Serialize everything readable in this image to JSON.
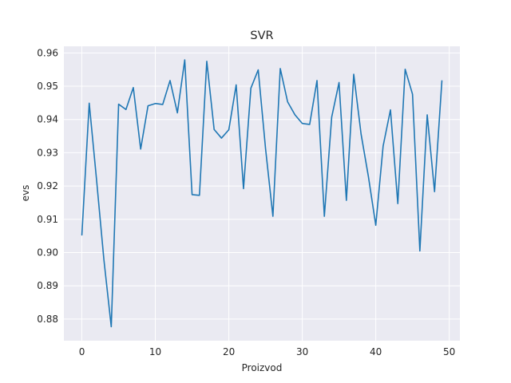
{
  "chart_data": {
    "type": "line",
    "title": "SVR",
    "xlabel": "Proizvod",
    "ylabel": "evs",
    "xlim": [
      -2.45,
      51.45
    ],
    "ylim": [
      0.8735,
      0.962
    ],
    "xticks": [
      0,
      10,
      20,
      30,
      40,
      50
    ],
    "yticks": [
      0.88,
      0.89,
      0.9,
      0.91,
      0.92,
      0.93,
      0.94,
      0.95,
      0.96
    ],
    "ytick_labels": [
      "0.88",
      "0.89",
      "0.90",
      "0.91",
      "0.92",
      "0.93",
      "0.94",
      "0.95",
      "0.96"
    ],
    "grid": true,
    "colors": {
      "background": "#eaeaf2",
      "grid": "#ffffff",
      "line": "#1f77b4"
    },
    "series": [
      {
        "x": [
          0,
          1,
          2,
          3,
          4,
          5,
          6,
          7,
          8,
          9,
          10,
          11,
          12,
          13,
          14,
          15,
          16,
          17,
          18,
          19,
          20,
          21,
          22,
          23,
          24,
          25,
          26,
          27,
          28,
          29,
          30,
          31,
          32,
          33,
          34,
          35,
          36,
          37,
          38,
          39,
          40,
          41,
          42,
          43,
          44,
          45,
          46,
          47,
          48,
          49
        ],
        "values": [
          0.9053,
          0.9449,
          0.9218,
          0.8978,
          0.8777,
          0.9446,
          0.943,
          0.9496,
          0.9311,
          0.9441,
          0.9448,
          0.9445,
          0.9517,
          0.942,
          0.9579,
          0.9174,
          0.9172,
          0.9575,
          0.937,
          0.9344,
          0.9369,
          0.9504,
          0.9192,
          0.9494,
          0.9549,
          0.9312,
          0.9109,
          0.9553,
          0.9453,
          0.9414,
          0.9388,
          0.9385,
          0.9517,
          0.9109,
          0.9407,
          0.9511,
          0.9157,
          0.9536,
          0.9356,
          0.9228,
          0.9082,
          0.932,
          0.9429,
          0.9147,
          0.9551,
          0.9476,
          0.9005,
          0.9414,
          0.9183,
          0.9516
        ]
      }
    ]
  }
}
